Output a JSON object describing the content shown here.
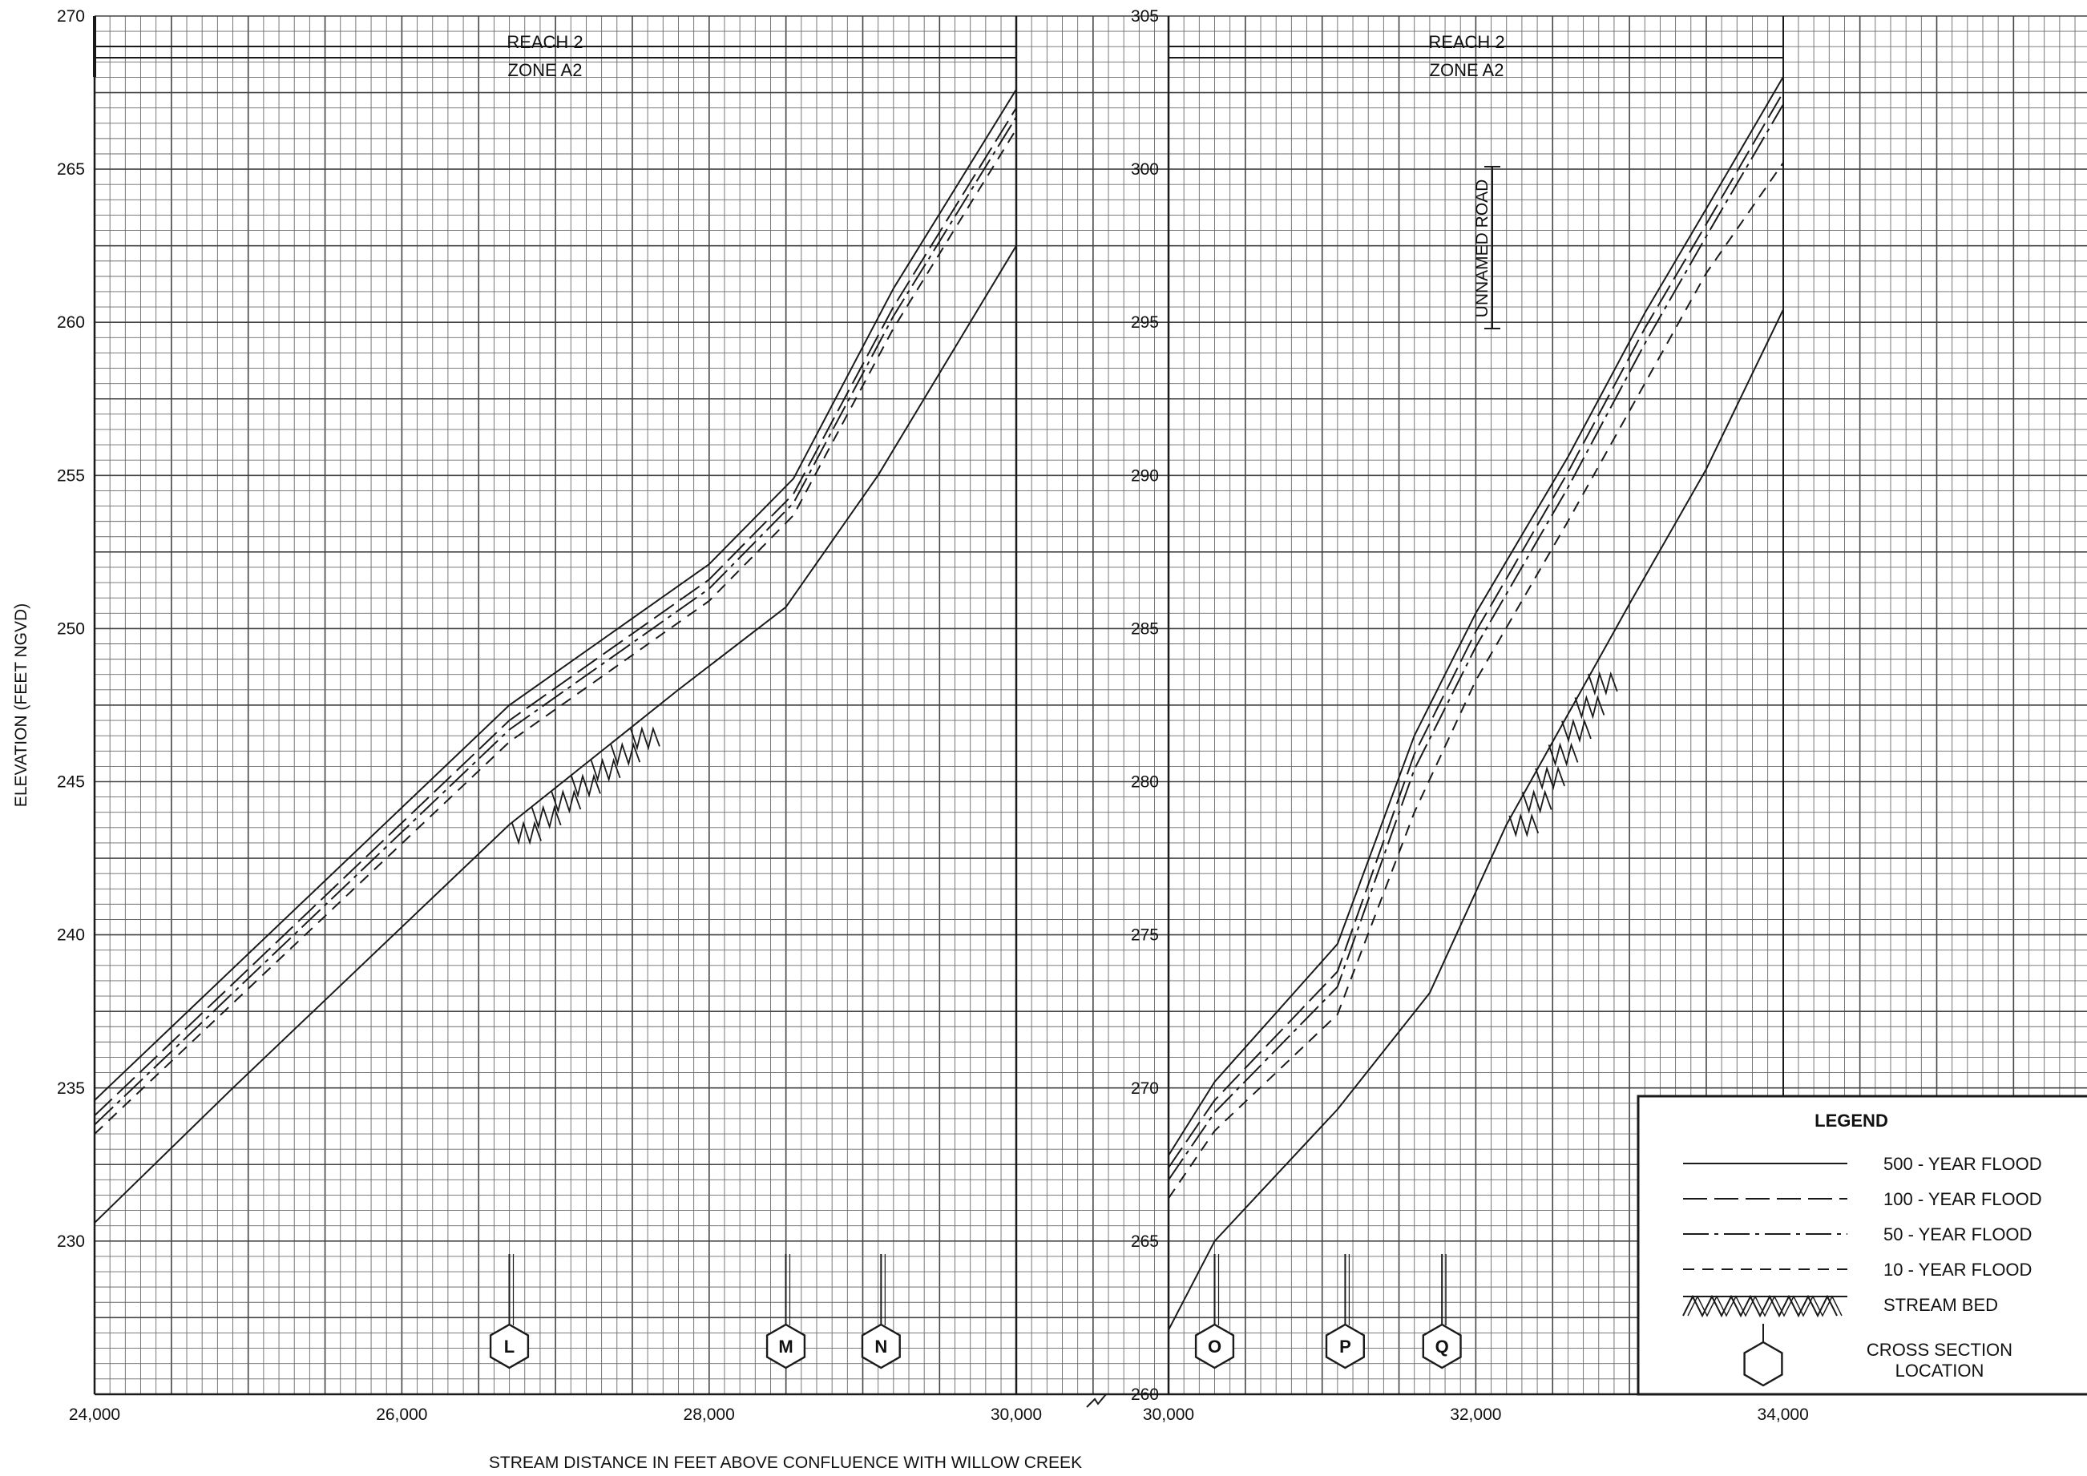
{
  "page": {
    "xlabel": "STREAM DISTANCE IN FEET ABOVE CONFLUENCE WITH WILLOW CREEK",
    "ylabel": "ELEVATION (FEET NGVD)"
  },
  "chart_data": [
    {
      "type": "line",
      "panel": "left",
      "annotations": [
        "REACH 2",
        "ZONE A2"
      ],
      "xlim": [
        24000,
        30000
      ],
      "ylim": [
        225,
        270
      ],
      "x_ticks": [
        24000,
        26000,
        28000,
        30000
      ],
      "x_tick_labels": [
        "24,000",
        "26,000",
        "28,000",
        "30,000"
      ],
      "y_ticks": [
        230,
        235,
        240,
        245,
        250,
        255,
        260,
        265,
        270
      ],
      "y_tick_labels": [
        "230",
        "235",
        "240",
        "245",
        "250",
        "255",
        "260",
        "265",
        "270"
      ],
      "grid": true,
      "series": [
        {
          "name": "500 - YEAR FLOOD",
          "style": "solid",
          "x": [
            24000,
            26700,
            28000,
            28550,
            29200,
            30000
          ],
          "y": [
            234.6,
            247.5,
            252.1,
            254.9,
            261.1,
            267.6
          ]
        },
        {
          "name": "100 - YEAR FLOOD",
          "style": "long-dash",
          "x": [
            24000,
            26700,
            28000,
            28550,
            29200,
            30000
          ],
          "y": [
            234.1,
            247.0,
            251.6,
            254.4,
            260.5,
            267.0
          ]
        },
        {
          "name": "50 - YEAR FLOOD",
          "style": "dash-dot",
          "x": [
            24000,
            26700,
            28000,
            28550,
            29200,
            30000
          ],
          "y": [
            233.8,
            246.7,
            251.3,
            254.1,
            260.2,
            266.7
          ]
        },
        {
          "name": "10 - YEAR FLOOD",
          "style": "short-dash",
          "x": [
            24000,
            26700,
            28000,
            28550,
            29200,
            30000
          ],
          "y": [
            233.5,
            246.3,
            250.9,
            253.7,
            259.8,
            266.3
          ]
        },
        {
          "name": "STREAM BED",
          "style": "bed",
          "x": [
            24000,
            24900,
            26700,
            27800,
            28500,
            29100,
            30000
          ],
          "y": [
            230.6,
            235.0,
            243.6,
            248.0,
            250.7,
            255.0,
            262.5
          ]
        }
      ],
      "cross_sections": [
        {
          "label": "L",
          "x": 26700
        },
        {
          "label": "M",
          "x": 28500
        },
        {
          "label": "N",
          "x": 29120
        }
      ]
    },
    {
      "type": "line",
      "panel": "right",
      "annotations": [
        "REACH 2",
        "ZONE A2",
        "UNNAMED ROAD"
      ],
      "xlim": [
        30000,
        36000
      ],
      "ylim": [
        260,
        305
      ],
      "x_ticks": [
        30000,
        32000,
        34000
      ],
      "x_tick_labels": [
        "30,000",
        "32,000",
        "34,000"
      ],
      "y_ticks": [
        260,
        265,
        270,
        275,
        280,
        285,
        290,
        295,
        300,
        305
      ],
      "y_tick_labels": [
        "260",
        "265",
        "270",
        "275",
        "280",
        "285",
        "290",
        "295",
        "300",
        "305"
      ],
      "grid": true,
      "series": [
        {
          "name": "500 - YEAR FLOOD",
          "style": "solid",
          "x": [
            30000,
            30300,
            31100,
            31600,
            32000,
            32600,
            33100,
            33500,
            34000
          ],
          "y": [
            267.8,
            270.2,
            274.7,
            281.5,
            285.5,
            290.6,
            295.3,
            298.7,
            303.0
          ]
        },
        {
          "name": "100 - YEAR FLOOD",
          "style": "long-dash",
          "x": [
            30000,
            30300,
            31100,
            31600,
            32000,
            32600,
            33100,
            33500,
            34000
          ],
          "y": [
            267.4,
            269.6,
            273.8,
            280.9,
            284.9,
            290.1,
            294.8,
            298.2,
            302.5
          ]
        },
        {
          "name": "50 - YEAR FLOOD",
          "style": "dash-dot",
          "x": [
            30000,
            30300,
            31100,
            31600,
            32000,
            32600,
            33100,
            33500,
            34000
          ],
          "y": [
            267.0,
            269.2,
            273.3,
            280.4,
            284.4,
            289.6,
            294.3,
            297.8,
            302.1
          ]
        },
        {
          "name": "10 - YEAR FLOOD",
          "style": "short-dash",
          "x": [
            30000,
            30300,
            31100,
            31600,
            32000,
            32600,
            33100,
            33500,
            34000
          ],
          "y": [
            266.4,
            268.6,
            272.4,
            279.0,
            283.3,
            288.5,
            293.0,
            296.6,
            300.2
          ]
        },
        {
          "name": "STREAM BED",
          "style": "bed",
          "x": [
            30000,
            30300,
            31100,
            31700,
            32200,
            33000,
            33500,
            34000
          ],
          "y": [
            262.1,
            265.0,
            269.3,
            273.1,
            278.6,
            285.8,
            290.2,
            295.4
          ]
        }
      ],
      "cross_sections": [
        {
          "label": "O",
          "x": 30300
        },
        {
          "label": "P",
          "x": 31150
        },
        {
          "label": "Q",
          "x": 31780
        }
      ]
    }
  ],
  "legend": {
    "title": "LEGEND",
    "placement": "bottom-right",
    "items": [
      {
        "style": "solid",
        "label": "500 - YEAR FLOOD"
      },
      {
        "style": "long-dash",
        "label": "100 - YEAR FLOOD"
      },
      {
        "style": "dash-dot",
        "label": "50 - YEAR FLOOD"
      },
      {
        "style": "short-dash",
        "label": "10 - YEAR FLOOD"
      },
      {
        "style": "bed",
        "label": "STREAM BED"
      },
      {
        "style": "hexagon",
        "label": "CROSS SECTION LOCATION"
      }
    ]
  }
}
